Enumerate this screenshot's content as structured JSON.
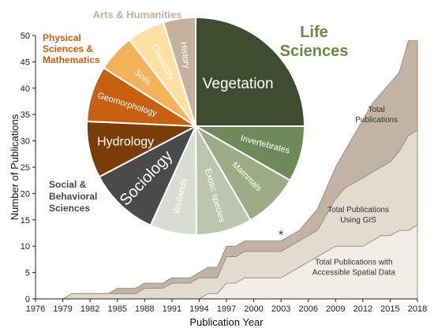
{
  "chart_data": {
    "type": "area",
    "ylabel": "Number of Publications",
    "xlabel": "Publication Year",
    "xlim": [
      1976,
      2018
    ],
    "ylim": [
      0,
      50
    ],
    "x_ticks": [
      "1976",
      "1979",
      "1982",
      "1985",
      "1988",
      "1991",
      "1994",
      "1997",
      "2000",
      "2003",
      "2006",
      "2009",
      "2012",
      "2015",
      "2018"
    ],
    "y_ticks": [
      "0",
      "5",
      "10",
      "15",
      "20",
      "25",
      "30",
      "35",
      "40",
      "45",
      "50"
    ],
    "x": [
      1976,
      1977,
      1978,
      1979,
      1980,
      1981,
      1982,
      1983,
      1984,
      1985,
      1986,
      1987,
      1988,
      1989,
      1990,
      1991,
      1992,
      1993,
      1994,
      1995,
      1996,
      1997,
      1998,
      1999,
      2000,
      2001,
      2002,
      2003,
      2004,
      2005,
      2006,
      2007,
      2008,
      2009,
      2010,
      2011,
      2012,
      2013,
      2014,
      2015,
      2016,
      2017,
      2018
    ],
    "series": [
      {
        "name": "Total Publications",
        "color": "#c3b3a2",
        "values": [
          0,
          0,
          0,
          0,
          1,
          1,
          1,
          1,
          1,
          2,
          2,
          2,
          3,
          3,
          3,
          4,
          4,
          4,
          5,
          6,
          6,
          10,
          10,
          11,
          11,
          11,
          11,
          11,
          12,
          13,
          15,
          17,
          21,
          25,
          28,
          31,
          34,
          37,
          39,
          41,
          43,
          49,
          49
        ]
      },
      {
        "name": "Total Publications Using GIS",
        "color": "#e3dbcf",
        "values": [
          0,
          0,
          0,
          0,
          1,
          1,
          1,
          1,
          1,
          1,
          1,
          1,
          2,
          2,
          2,
          3,
          3,
          3,
          4,
          4,
          4,
          8,
          8,
          9,
          9,
          9,
          9,
          9,
          10,
          11,
          12,
          13,
          16,
          19,
          21,
          22,
          23,
          24,
          25,
          26,
          28,
          31,
          32
        ]
      },
      {
        "name": "Total Publications with Accessible Spatial Data",
        "color": "#f1eee7",
        "values": [
          0,
          0,
          0,
          0,
          0,
          0,
          0,
          0,
          0,
          0,
          0,
          0,
          0,
          0,
          0,
          0,
          0,
          0,
          0,
          1,
          1,
          3,
          3,
          4,
          4,
          4,
          4,
          4,
          5,
          6,
          7,
          8,
          9,
          10,
          10,
          10,
          10,
          11,
          12,
          12,
          13,
          13,
          14
        ]
      }
    ],
    "series_labels": [
      {
        "lines": [
          "Total",
          "Publications"
        ],
        "x": 2013.5,
        "y": 35.5
      },
      {
        "lines": [
          "Total Publications",
          "Using GIS"
        ],
        "x": 2011.5,
        "y": 16.5
      },
      {
        "lines": [
          "Total Publications with",
          "Accessible Spatial Data"
        ],
        "x": 2011,
        "y": 6.5
      }
    ],
    "annotation": {
      "text": "*",
      "x": 2003,
      "y": 12.5
    }
  },
  "pie": {
    "slices": [
      {
        "label": "Vegetation",
        "value": 25.0,
        "color": "#3e4d2f",
        "text_color": "#ffffff"
      },
      {
        "label": "Invertebrates",
        "value": 8.3,
        "color": "#6e8a58",
        "text_color": "#ffffff"
      },
      {
        "label": "Mammals",
        "value": 8.3,
        "color": "#9bac86",
        "text_color": "#ffffff"
      },
      {
        "label": "Exotic species",
        "value": 8.3,
        "color": "#bcc6ae",
        "text_color": "#ffffff"
      },
      {
        "label": "Wetlands",
        "value": 6.9,
        "color": "#d8ddd2",
        "text_color": "#ffffff"
      },
      {
        "label": "Sociology",
        "value": 10.5,
        "color": "#4a4a4a",
        "text_color": "#ffffff"
      },
      {
        "label": "Hydrology",
        "value": 8.4,
        "color": "#7a3d06",
        "text_color": "#ffffff"
      },
      {
        "label": "Geomorphology",
        "value": 8.3,
        "color": "#c9600f",
        "text_color": "#ffffff"
      },
      {
        "label": "Soils",
        "value": 5.6,
        "color": "#f5b25a",
        "text_color": "#ffffff"
      },
      {
        "label": "Chemistry",
        "value": 5.6,
        "color": "#fde0a2",
        "text_color": "#ffffff"
      },
      {
        "label": "History",
        "value": 4.8,
        "color": "#c4b29e",
        "text_color": "#ffffff"
      }
    ]
  },
  "groups": {
    "arts": "Arts & Humanities",
    "physical": [
      "Physical",
      "Sciences &",
      "Mathematics"
    ],
    "life": [
      "Life",
      "Sciences"
    ],
    "social": [
      "Social &",
      "Behavioral",
      "Sciences"
    ]
  },
  "colors": {
    "arts": "#c4b29e",
    "physical": "#c9600f",
    "life": "#6a8a45",
    "social": "#4a4a4a",
    "axis": "#222222"
  }
}
